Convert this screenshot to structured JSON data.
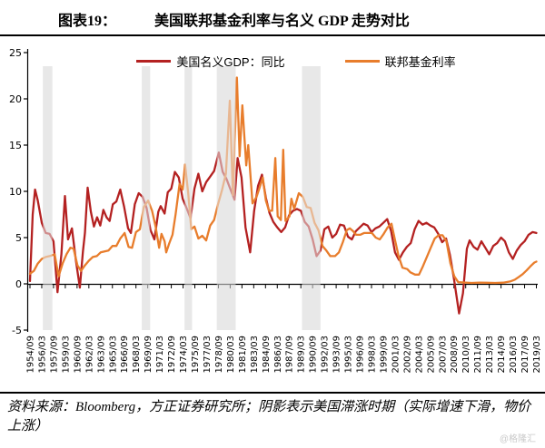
{
  "header": {
    "figure_label": "图表19：",
    "title": "美国联邦基金利率与名义 GDP 走势对比"
  },
  "legend": {
    "gdp_label": "美国名义GDP：同比",
    "ffr_label": "联邦基金利率"
  },
  "footer": {
    "source_text": "资料来源：Bloomberg，方正证券研究所；阴影表示美国滞涨时期（实际增速下滑，物价上涨）",
    "watermark": "@格隆汇"
  },
  "colors": {
    "gdp_line": "#b42121",
    "ffr_line": "#e87d2c",
    "band": "#e8e8e8",
    "axis": "#000000"
  },
  "chart_data": {
    "type": "line",
    "title": "美国联邦基金利率与名义 GDP 走势对比",
    "xlabel": "",
    "ylabel": "",
    "ylim": [
      -5,
      25
    ],
    "yticks": [
      -5,
      0,
      5,
      10,
      15,
      20,
      25
    ],
    "x_range": [
      1954.75,
      2019.25
    ],
    "x_tick_step_years": 1.5,
    "grid": false,
    "legend_position": "top-center",
    "x_tick_labels": [
      "1954/09",
      "1956/03",
      "1957/09",
      "1959/03",
      "1960/09",
      "1962/03",
      "1963/09",
      "1965/03",
      "1966/09",
      "1968/03",
      "1969/09",
      "1971/03",
      "1972/09",
      "1974/03",
      "1975/09",
      "1977/03",
      "1978/09",
      "1980/03",
      "1981/09",
      "1983/03",
      "1984/09",
      "1986/03",
      "1987/09",
      "1989/03",
      "1990/09",
      "1992/03",
      "1993/09",
      "1995/03",
      "1996/09",
      "1998/03",
      "1999/09",
      "2001/03",
      "2002/09",
      "2004/03",
      "2005/09",
      "2007/03",
      "2008/09",
      "2010/03",
      "2011/09",
      "2013/03",
      "2014/09",
      "2016/03",
      "2017/09",
      "2019/03"
    ],
    "shaded_bands": {
      "meaning": "美国滞涨时期（实际增速下滑，物价上涨）",
      "color": "#e8e8e8",
      "ranges": [
        [
          1956.4,
          1957.6
        ],
        [
          1969.0,
          1970.05
        ],
        [
          1974.45,
          1975.4
        ],
        [
          1978.55,
          1980.95
        ],
        [
          1989.4,
          1991.75
        ]
      ]
    },
    "series": [
      {
        "name": "美国名义GDP：同比",
        "color": "#b42121",
        "points": [
          [
            1954.75,
            0.3
          ],
          [
            1955.1,
            7.5
          ],
          [
            1955.4,
            10.2
          ],
          [
            1955.75,
            9.0
          ],
          [
            1956.25,
            6.6
          ],
          [
            1956.75,
            5.5
          ],
          [
            1957.25,
            5.4
          ],
          [
            1957.75,
            4.6
          ],
          [
            1958.25,
            -0.9
          ],
          [
            1958.75,
            3.2
          ],
          [
            1959.2,
            9.5
          ],
          [
            1959.6,
            4.8
          ],
          [
            1960.1,
            6.0
          ],
          [
            1960.6,
            2.5
          ],
          [
            1961.1,
            -0.4
          ],
          [
            1961.5,
            3.5
          ],
          [
            1961.75,
            5.5
          ],
          [
            1962.1,
            10.4
          ],
          [
            1962.5,
            7.8
          ],
          [
            1962.9,
            6.2
          ],
          [
            1963.3,
            7.2
          ],
          [
            1963.7,
            6.3
          ],
          [
            1964.1,
            8.0
          ],
          [
            1964.5,
            7.2
          ],
          [
            1964.9,
            6.8
          ],
          [
            1965.3,
            8.6
          ],
          [
            1965.75,
            8.9
          ],
          [
            1966.25,
            10.2
          ],
          [
            1966.75,
            8.3
          ],
          [
            1967.25,
            6.0
          ],
          [
            1967.6,
            5.5
          ],
          [
            1968.1,
            8.6
          ],
          [
            1968.6,
            9.8
          ],
          [
            1969.1,
            9.4
          ],
          [
            1969.6,
            8.2
          ],
          [
            1970.1,
            5.8
          ],
          [
            1970.6,
            4.8
          ],
          [
            1971.1,
            7.8
          ],
          [
            1971.4,
            8.4
          ],
          [
            1971.9,
            7.6
          ],
          [
            1972.3,
            9.9
          ],
          [
            1972.75,
            10.3
          ],
          [
            1973.2,
            12.1
          ],
          [
            1973.7,
            11.5
          ],
          [
            1974.2,
            9.2
          ],
          [
            1974.7,
            8.2
          ],
          [
            1975.2,
            7.1
          ],
          [
            1975.7,
            10.3
          ],
          [
            1976.2,
            11.9
          ],
          [
            1976.7,
            10.0
          ],
          [
            1977.2,
            11.0
          ],
          [
            1977.7,
            11.6
          ],
          [
            1978.2,
            12.2
          ],
          [
            1978.8,
            14.2
          ],
          [
            1979.3,
            12.1
          ],
          [
            1979.8,
            11.3
          ],
          [
            1980.3,
            10.2
          ],
          [
            1980.8,
            9.1
          ],
          [
            1981.2,
            13.6
          ],
          [
            1981.7,
            11.5
          ],
          [
            1982.2,
            6.1
          ],
          [
            1982.8,
            3.4
          ],
          [
            1983.3,
            7.9
          ],
          [
            1983.8,
            10.6
          ],
          [
            1984.3,
            11.8
          ],
          [
            1984.8,
            9.3
          ],
          [
            1985.25,
            7.7
          ],
          [
            1985.75,
            6.7
          ],
          [
            1986.25,
            6.1
          ],
          [
            1986.75,
            5.6
          ],
          [
            1987.25,
            6.1
          ],
          [
            1987.75,
            7.4
          ],
          [
            1988.25,
            7.9
          ],
          [
            1988.75,
            8.1
          ],
          [
            1989.25,
            7.9
          ],
          [
            1989.75,
            6.7
          ],
          [
            1990.25,
            6.2
          ],
          [
            1990.75,
            4.8
          ],
          [
            1991.25,
            3.0
          ],
          [
            1991.75,
            3.6
          ],
          [
            1992.25,
            5.9
          ],
          [
            1992.75,
            6.2
          ],
          [
            1993.25,
            5.0
          ],
          [
            1993.75,
            5.4
          ],
          [
            1994.25,
            6.4
          ],
          [
            1994.75,
            6.3
          ],
          [
            1995.25,
            5.1
          ],
          [
            1995.75,
            4.8
          ],
          [
            1996.25,
            5.7
          ],
          [
            1996.75,
            6.1
          ],
          [
            1997.25,
            6.5
          ],
          [
            1997.75,
            6.3
          ],
          [
            1998.25,
            5.6
          ],
          [
            1998.75,
            6.0
          ],
          [
            1999.25,
            6.2
          ],
          [
            1999.75,
            6.6
          ],
          [
            2000.25,
            7.0
          ],
          [
            2000.75,
            5.7
          ],
          [
            2001.25,
            3.4
          ],
          [
            2001.75,
            2.6
          ],
          [
            2002.25,
            3.4
          ],
          [
            2002.75,
            4.0
          ],
          [
            2003.25,
            4.4
          ],
          [
            2003.75,
            5.9
          ],
          [
            2004.25,
            6.8
          ],
          [
            2004.75,
            6.4
          ],
          [
            2005.25,
            6.6
          ],
          [
            2005.75,
            6.3
          ],
          [
            2006.25,
            6.1
          ],
          [
            2006.75,
            5.4
          ],
          [
            2007.25,
            4.5
          ],
          [
            2007.75,
            4.9
          ],
          [
            2008.25,
            3.1
          ],
          [
            2008.75,
            0.6
          ],
          [
            2009.4,
            -3.2
          ],
          [
            2009.9,
            -1.0
          ],
          [
            2010.4,
            3.8
          ],
          [
            2010.75,
            4.7
          ],
          [
            2011.25,
            4.0
          ],
          [
            2011.75,
            3.7
          ],
          [
            2012.25,
            4.6
          ],
          [
            2012.75,
            3.9
          ],
          [
            2013.25,
            3.2
          ],
          [
            2013.75,
            4.1
          ],
          [
            2014.25,
            4.4
          ],
          [
            2014.75,
            5.0
          ],
          [
            2015.25,
            4.6
          ],
          [
            2015.75,
            3.4
          ],
          [
            2016.25,
            2.7
          ],
          [
            2016.75,
            3.6
          ],
          [
            2017.25,
            4.2
          ],
          [
            2017.75,
            4.6
          ],
          [
            2018.25,
            5.3
          ],
          [
            2018.75,
            5.6
          ],
          [
            2019.25,
            5.5
          ]
        ]
      },
      {
        "name": "联邦基金利率",
        "color": "#e87d2c",
        "points": [
          [
            1954.75,
            1.1
          ],
          [
            1955.25,
            1.4
          ],
          [
            1955.75,
            2.2
          ],
          [
            1956.25,
            2.7
          ],
          [
            1956.75,
            2.9
          ],
          [
            1957.25,
            3.0
          ],
          [
            1957.9,
            3.2
          ],
          [
            1958.4,
            0.8
          ],
          [
            1958.9,
            2.2
          ],
          [
            1959.4,
            3.2
          ],
          [
            1959.9,
            3.9
          ],
          [
            1960.3,
            3.8
          ],
          [
            1960.8,
            2.0
          ],
          [
            1961.25,
            1.4
          ],
          [
            1961.75,
            2.0
          ],
          [
            1962.25,
            2.5
          ],
          [
            1962.75,
            2.9
          ],
          [
            1963.25,
            3.0
          ],
          [
            1963.75,
            3.4
          ],
          [
            1964.25,
            3.5
          ],
          [
            1964.75,
            3.6
          ],
          [
            1965.25,
            4.1
          ],
          [
            1965.75,
            4.1
          ],
          [
            1966.25,
            4.9
          ],
          [
            1966.8,
            5.5
          ],
          [
            1967.3,
            4.0
          ],
          [
            1967.75,
            3.9
          ],
          [
            1968.25,
            5.6
          ],
          [
            1968.75,
            5.9
          ],
          [
            1969.25,
            8.3
          ],
          [
            1969.8,
            9.0
          ],
          [
            1970.3,
            7.9
          ],
          [
            1970.75,
            6.2
          ],
          [
            1971.2,
            3.9
          ],
          [
            1971.5,
            5.4
          ],
          [
            1971.9,
            4.6
          ],
          [
            1972.1,
            3.4
          ],
          [
            1972.5,
            4.4
          ],
          [
            1972.9,
            5.3
          ],
          [
            1973.3,
            7.5
          ],
          [
            1973.8,
            10.8
          ],
          [
            1974.2,
            10.2
          ],
          [
            1974.5,
            12.9
          ],
          [
            1974.9,
            9.8
          ],
          [
            1975.3,
            5.9
          ],
          [
            1975.7,
            6.2
          ],
          [
            1976.2,
            4.9
          ],
          [
            1976.7,
            5.2
          ],
          [
            1977.2,
            4.7
          ],
          [
            1977.7,
            6.3
          ],
          [
            1978.2,
            6.9
          ],
          [
            1978.7,
            8.6
          ],
          [
            1979.2,
            10.1
          ],
          [
            1979.7,
            11.9
          ],
          [
            1980.2,
            19.8
          ],
          [
            1980.6,
            9.6
          ],
          [
            1981.1,
            22.3
          ],
          [
            1981.45,
            13.8
          ],
          [
            1981.8,
            19.3
          ],
          [
            1982.3,
            12.8
          ],
          [
            1982.55,
            15.0
          ],
          [
            1983.1,
            8.7
          ],
          [
            1983.6,
            9.4
          ],
          [
            1984.0,
            10.4
          ],
          [
            1984.4,
            11.5
          ],
          [
            1984.8,
            9.0
          ],
          [
            1985.2,
            7.9
          ],
          [
            1985.6,
            7.9
          ],
          [
            1986.0,
            13.6
          ],
          [
            1986.3,
            7.3
          ],
          [
            1986.7,
            6.9
          ],
          [
            1987.0,
            14.5
          ],
          [
            1987.3,
            6.8
          ],
          [
            1987.8,
            7.3
          ],
          [
            1988.05,
            9.2
          ],
          [
            1988.4,
            8.1
          ],
          [
            1989.0,
            9.8
          ],
          [
            1989.5,
            9.4
          ],
          [
            1990.0,
            8.3
          ],
          [
            1990.5,
            8.2
          ],
          [
            1991.0,
            6.6
          ],
          [
            1991.5,
            5.8
          ],
          [
            1992.0,
            4.1
          ],
          [
            1992.5,
            3.6
          ],
          [
            1993.0,
            3.0
          ],
          [
            1993.6,
            3.0
          ],
          [
            1994.1,
            3.4
          ],
          [
            1994.6,
            4.5
          ],
          [
            1995.1,
            5.8
          ],
          [
            1995.5,
            6.0
          ],
          [
            1995.9,
            5.7
          ],
          [
            1996.3,
            5.3
          ],
          [
            1996.8,
            5.3
          ],
          [
            1997.3,
            5.5
          ],
          [
            1997.8,
            5.5
          ],
          [
            1998.3,
            5.5
          ],
          [
            1998.8,
            5.0
          ],
          [
            1999.3,
            4.8
          ],
          [
            1999.8,
            5.4
          ],
          [
            2000.3,
            6.1
          ],
          [
            2000.8,
            6.5
          ],
          [
            2001.2,
            4.9
          ],
          [
            2001.7,
            3.0
          ],
          [
            2002.2,
            1.75
          ],
          [
            2002.8,
            1.6
          ],
          [
            2003.2,
            1.25
          ],
          [
            2003.8,
            1.0
          ],
          [
            2004.3,
            1.0
          ],
          [
            2004.8,
            1.9
          ],
          [
            2005.3,
            2.9
          ],
          [
            2005.8,
            3.9
          ],
          [
            2006.3,
            4.9
          ],
          [
            2006.8,
            5.25
          ],
          [
            2007.3,
            5.25
          ],
          [
            2007.8,
            4.6
          ],
          [
            2008.3,
            2.2
          ],
          [
            2008.8,
            0.8
          ],
          [
            2009.3,
            0.18
          ],
          [
            2010.0,
            0.15
          ],
          [
            2011.0,
            0.1
          ],
          [
            2012.0,
            0.14
          ],
          [
            2013.0,
            0.12
          ],
          [
            2014.0,
            0.1
          ],
          [
            2015.0,
            0.13
          ],
          [
            2015.9,
            0.25
          ],
          [
            2016.5,
            0.45
          ],
          [
            2017.0,
            0.75
          ],
          [
            2017.5,
            1.05
          ],
          [
            2018.0,
            1.45
          ],
          [
            2018.5,
            1.9
          ],
          [
            2019.0,
            2.3
          ],
          [
            2019.25,
            2.4
          ]
        ]
      }
    ]
  }
}
